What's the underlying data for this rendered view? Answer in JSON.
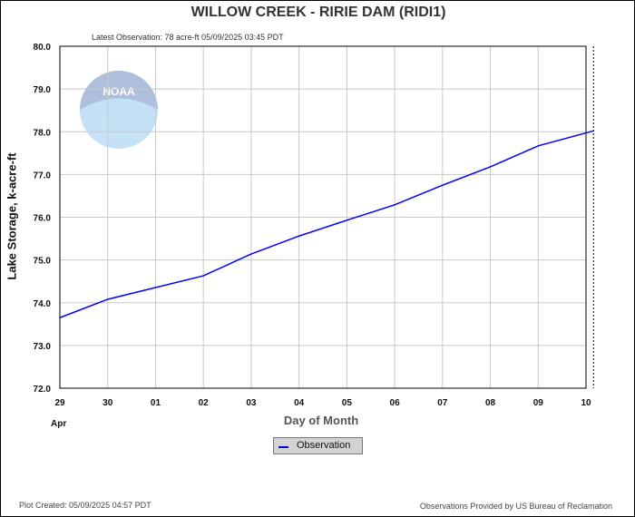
{
  "header": {
    "title": "WILLOW CREEK - RIRIE DAM  (RIDI1)",
    "latest_observation": "Latest Observation: 78 acre-ft 05/09/2025 03:45 PDT"
  },
  "footer": {
    "plot_created": "Plot Created: 05/09/2025 04:57 PDT",
    "provided_by": "Observations Provided by US Bureau of Reclamation"
  },
  "logo": {
    "text": "NOAA"
  },
  "chart_data": {
    "type": "line",
    "title": "WILLOW CREEK - RIRIE DAM  (RIDI1)",
    "xlabel": "Day of Month",
    "xlabel_sub": "Apr",
    "ylabel": "Lake Storage, k-acre-ft",
    "xlim_days_from_apr29": [
      0,
      11
    ],
    "x_tick_labels": [
      "29",
      "30",
      "01",
      "02",
      "03",
      "04",
      "05",
      "06",
      "07",
      "08",
      "09",
      "10"
    ],
    "ylim": [
      72,
      80
    ],
    "y_tick_labels": [
      "72.0",
      "73.0",
      "74.0",
      "75.0",
      "76.0",
      "77.0",
      "78.0",
      "79.0",
      "80.0"
    ],
    "grid": true,
    "legend_position": "bottom-center",
    "current_time_marker": "05/09/2025 03:45 PDT",
    "series": [
      {
        "name": "Observation",
        "color": "#0000ff",
        "x": [
          "04/29 00:00",
          "04/30 00:00",
          "05/01 00:00",
          "05/02 00:00",
          "05/03 00:00",
          "05/04 00:00",
          "05/05 00:00",
          "05/06 00:00",
          "05/07 00:00",
          "05/08 00:00",
          "05/09 03:45"
        ],
        "values": [
          73.65,
          74.08,
          74.63,
          75.14,
          75.56,
          75.93,
          76.29,
          76.75,
          77.18,
          77.67,
          78.02
        ]
      }
    ]
  }
}
